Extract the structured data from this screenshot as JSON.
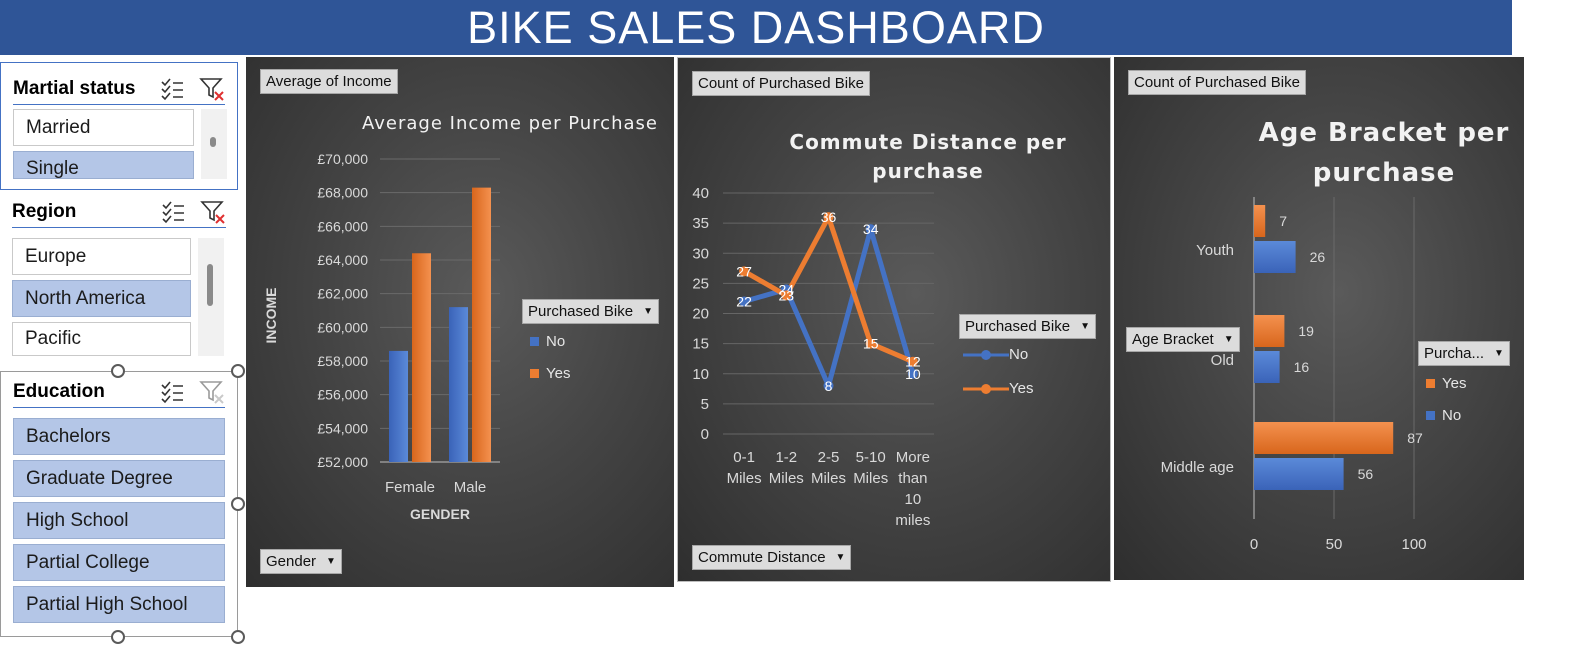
{
  "banner": {
    "title": "BIKE SALES DASHBOARD"
  },
  "colors": {
    "no": "#4472c4",
    "yes": "#ed7d31",
    "accent": "#2f5597"
  },
  "slicers": {
    "marital": {
      "title": "Martial status",
      "items": [
        {
          "label": "Married",
          "selected": false
        },
        {
          "label": "Single",
          "selected": true
        }
      ]
    },
    "region": {
      "title": "Region",
      "items": [
        {
          "label": "Europe",
          "selected": false
        },
        {
          "label": "North America",
          "selected": true
        },
        {
          "label": "Pacific",
          "selected": false
        }
      ]
    },
    "education": {
      "title": "Education",
      "items": [
        {
          "label": "Bachelors",
          "selected": true
        },
        {
          "label": "Graduate Degree",
          "selected": true
        },
        {
          "label": "High School",
          "selected": true
        },
        {
          "label": "Partial College",
          "selected": true
        },
        {
          "label": "Partial High School",
          "selected": true
        }
      ]
    }
  },
  "income_panel": {
    "value_button": "Average of Income",
    "axis_button": "Gender",
    "legend_button": "Purchased Bike",
    "legend_items": [
      "No",
      "Yes"
    ]
  },
  "commute_panel": {
    "value_button": "Count of Purchased Bike",
    "axis_button": "Commute Distance",
    "legend_button": "Purchased Bike",
    "legend_items": [
      "No",
      "Yes"
    ]
  },
  "age_panel": {
    "value_button": "Count of Purchased Bike",
    "axis_button": "Age Bracket",
    "legend_button": "Purcha...",
    "legend_items": [
      "Yes",
      "No"
    ]
  },
  "chart_data": [
    {
      "type": "bar",
      "title": "Average Income per Purchase",
      "xlabel": "GENDER",
      "ylabel": "INCOME",
      "categories": [
        "Female",
        "Male"
      ],
      "series": [
        {
          "name": "No",
          "values": [
            58600,
            61200
          ]
        },
        {
          "name": "Yes",
          "values": [
            64400,
            68300
          ]
        }
      ],
      "ylim": [
        52000,
        70000
      ],
      "yticks": [
        "£70,000",
        "£68,000",
        "£66,000",
        "£64,000",
        "£62,000",
        "£60,000",
        "£58,000",
        "£56,000",
        "£54,000",
        "£52,000"
      ],
      "legend": "right"
    },
    {
      "type": "line",
      "title": "Commute Distance per purchase",
      "categories": [
        "0-1 Miles",
        "1-2 Miles",
        "2-5 Miles",
        "5-10 Miles",
        "More than 10 miles"
      ],
      "series": [
        {
          "name": "No",
          "values": [
            22,
            24,
            8,
            34,
            10
          ]
        },
        {
          "name": "Yes",
          "values": [
            27,
            23,
            36,
            15,
            12
          ]
        }
      ],
      "ylim": [
        0,
        40
      ],
      "yticks": [
        "40",
        "35",
        "30",
        "25",
        "20",
        "15",
        "10",
        "5",
        "0"
      ],
      "legend": "right"
    },
    {
      "type": "bar",
      "orientation": "horizontal",
      "title": "Age Bracket per purchase",
      "categories": [
        "Youth",
        "Old",
        "Middle age"
      ],
      "series": [
        {
          "name": "Yes",
          "values": [
            7,
            19,
            87
          ]
        },
        {
          "name": "No",
          "values": [
            26,
            16,
            56
          ]
        }
      ],
      "xlim": [
        0,
        100
      ],
      "xticks": [
        "0",
        "50",
        "100"
      ],
      "legend": "right"
    }
  ]
}
